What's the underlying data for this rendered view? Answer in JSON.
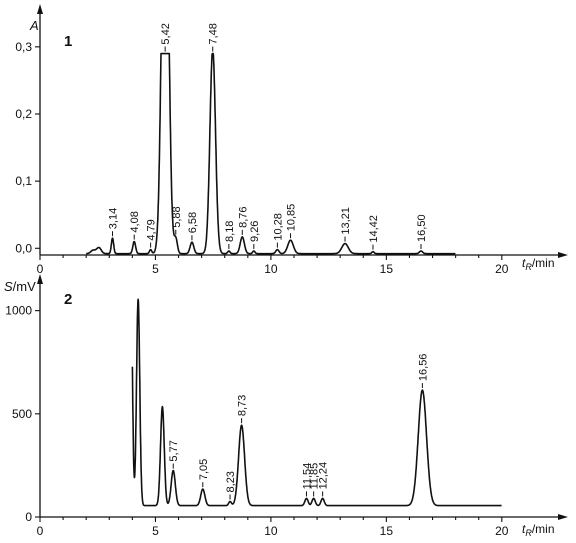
{
  "chart_data": [
    {
      "type": "line",
      "panel_label": "1",
      "ylabel": "A",
      "xlabel_main": "t",
      "xlabel_sub": "R",
      "xlabel_unit": "/min",
      "xlim": [
        0,
        22
      ],
      "ylim": [
        -0.01,
        0.34
      ],
      "xticks": [
        0,
        5,
        10,
        15,
        20
      ],
      "xtick_labels": [
        "0",
        "5",
        "10",
        "15",
        "20"
      ],
      "yticks": [
        0.0,
        0.1,
        0.2,
        0.3
      ],
      "ytick_labels": [
        "0,0",
        "0,1",
        "0,2",
        "0,3"
      ],
      "baseline": -0.008,
      "trace_end": 18.0,
      "peaks": [
        {
          "t": 2.3,
          "h": 0.005,
          "w": 0.1,
          "label": ""
        },
        {
          "t": 2.55,
          "h": 0.009,
          "w": 0.1,
          "label": ""
        },
        {
          "t": 3.14,
          "h": 0.023,
          "w": 0.05,
          "label": "3,14"
        },
        {
          "t": 4.08,
          "h": 0.018,
          "w": 0.06,
          "label": "4,08"
        },
        {
          "t": 4.79,
          "h": 0.006,
          "w": 0.05,
          "label": "4,79"
        },
        {
          "t": 5.42,
          "h": 0.7,
          "w": 0.14,
          "label": "5,42"
        },
        {
          "t": 5.88,
          "h": 0.022,
          "w": 0.07,
          "label": "5,88"
        },
        {
          "t": 6.58,
          "h": 0.017,
          "w": 0.08,
          "label": "6,58"
        },
        {
          "t": 7.48,
          "h": 0.305,
          "w": 0.12,
          "label": "7,48"
        },
        {
          "t": 8.18,
          "h": 0.004,
          "w": 0.05,
          "label": "8,18"
        },
        {
          "t": 8.76,
          "h": 0.025,
          "w": 0.09,
          "label": "8,76"
        },
        {
          "t": 9.26,
          "h": 0.004,
          "w": 0.05,
          "label": "9,26"
        },
        {
          "t": 10.28,
          "h": 0.006,
          "w": 0.07,
          "label": "10,28"
        },
        {
          "t": 10.85,
          "h": 0.02,
          "w": 0.12,
          "label": "10,85"
        },
        {
          "t": 13.21,
          "h": 0.015,
          "w": 0.14,
          "label": "13,21"
        },
        {
          "t": 14.42,
          "h": 0.003,
          "w": 0.05,
          "label": "14,42"
        },
        {
          "t": 16.5,
          "h": 0.004,
          "w": 0.07,
          "label": "16,50"
        }
      ],
      "clip_top": 0.29
    },
    {
      "type": "line",
      "panel_label": "2",
      "ylabel": "S",
      "ylabel_unit": "/mV",
      "xlabel_main": "t",
      "xlabel_sub": "R",
      "xlabel_unit": "/min",
      "xlim": [
        0,
        22
      ],
      "ylim": [
        0,
        1100
      ],
      "xticks": [
        0,
        5,
        10,
        15,
        20
      ],
      "xtick_labels": [
        "0",
        "5",
        "10",
        "15",
        "20"
      ],
      "yticks": [
        0,
        500,
        1000
      ],
      "ytick_labels": [
        "0",
        "500",
        "1000"
      ],
      "baseline": 55,
      "trace_start": 4.0,
      "trace_end": 20.0,
      "peaks": [
        {
          "t": 3.95,
          "h": 950,
          "w": 0.06,
          "label": ""
        },
        {
          "t": 4.25,
          "h": 1000,
          "w": 0.07,
          "label": ""
        },
        {
          "t": 5.3,
          "h": 480,
          "w": 0.08,
          "label": ""
        },
        {
          "t": 5.77,
          "h": 170,
          "w": 0.09,
          "label": "5,77"
        },
        {
          "t": 7.05,
          "h": 80,
          "w": 0.09,
          "label": "7,05"
        },
        {
          "t": 8.23,
          "h": 20,
          "w": 0.06,
          "label": "8,23"
        },
        {
          "t": 8.73,
          "h": 390,
          "w": 0.13,
          "label": "8,73"
        },
        {
          "t": 11.54,
          "h": 35,
          "w": 0.07,
          "label": "11,54"
        },
        {
          "t": 11.85,
          "h": 35,
          "w": 0.07,
          "label": "11,85"
        },
        {
          "t": 12.24,
          "h": 35,
          "w": 0.07,
          "label": "12,24"
        },
        {
          "t": 16.56,
          "h": 560,
          "w": 0.18,
          "label": "16,56"
        }
      ]
    }
  ]
}
